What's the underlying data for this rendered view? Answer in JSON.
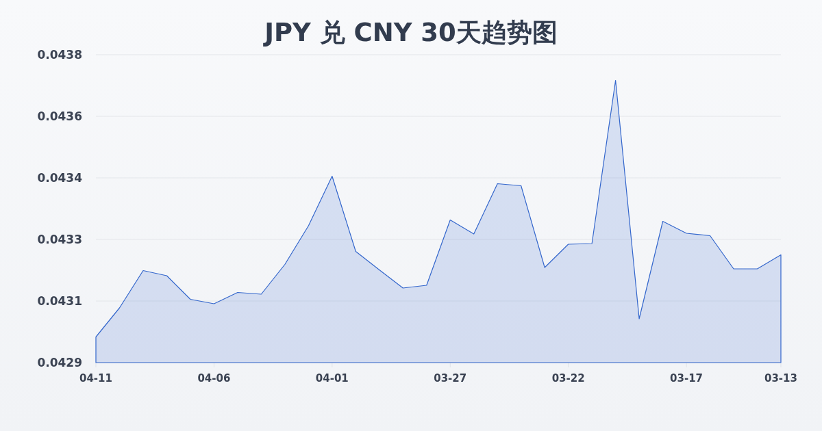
{
  "chart_data": {
    "type": "area",
    "title": "JPY 兑 CNY 30天趋势图",
    "categories": [
      "04-11",
      null,
      null,
      null,
      null,
      "04-06",
      null,
      null,
      null,
      null,
      "04-01",
      null,
      null,
      null,
      null,
      "03-27",
      null,
      null,
      null,
      null,
      "03-22",
      null,
      null,
      null,
      null,
      "03-17",
      null,
      null,
      null,
      "03-13"
    ],
    "series": [
      {
        "color": "#3366cc",
        "values": [
          0.042975,
          0.04306,
          0.043169,
          0.043154,
          0.043085,
          0.043072,
          0.043105,
          0.0431,
          0.043187,
          0.0433,
          0.043445,
          0.043225,
          0.043171,
          0.043118,
          0.043126,
          0.043317,
          0.043276,
          0.043423,
          0.043417,
          0.043178,
          0.043246,
          0.043248,
          0.043725,
          0.043028,
          0.043313,
          0.043278,
          0.043271,
          0.043174,
          0.043174,
          0.043215
        ]
      }
    ],
    "ylim": [
      0.0429,
      0.0438
    ],
    "yticks": [
      0.0429,
      {
        "value": 0.04308,
        "label": "0.0431"
      },
      {
        "value": 0.04326,
        "label": "0.0433"
      },
      {
        "value": 0.04344,
        "label": "0.0434"
      },
      {
        "value": 0.04362,
        "label": "0.0436"
      },
      0.0438
    ],
    "grid": "y"
  }
}
